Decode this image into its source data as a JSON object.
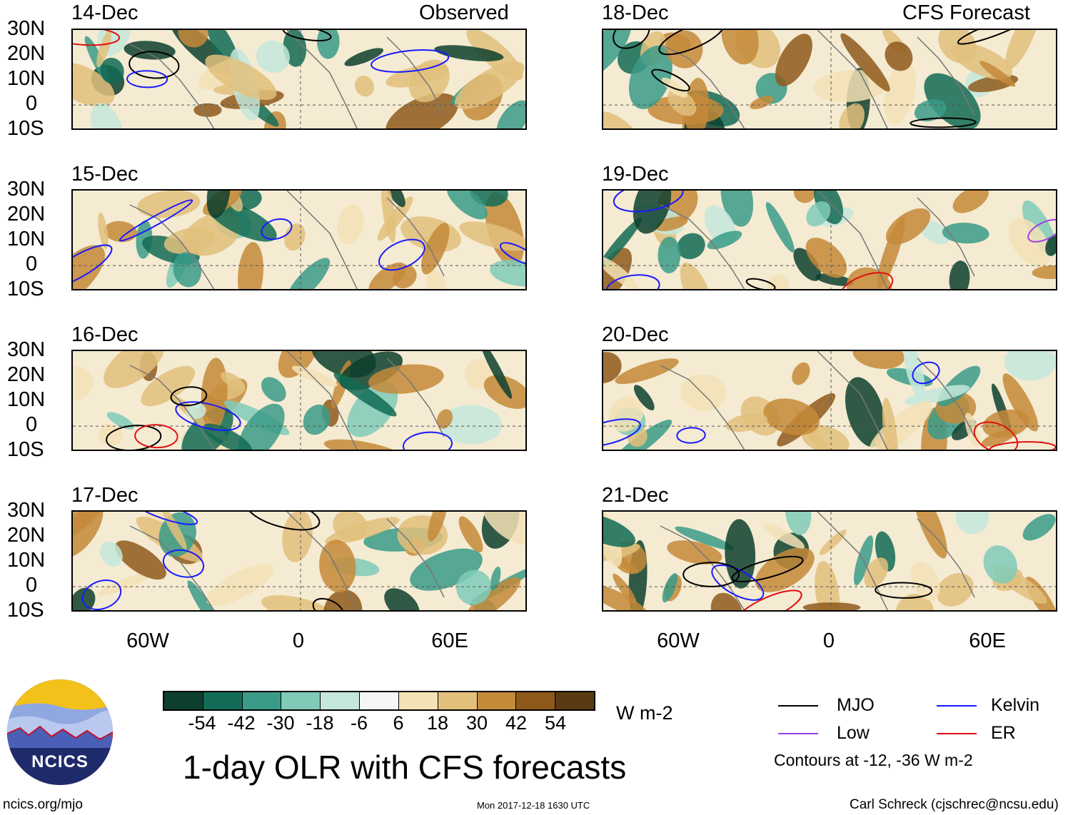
{
  "observed_label": "Observed",
  "forecast_label": "CFS Forecast",
  "panels_left": [
    {
      "date": "14-Dec"
    },
    {
      "date": "15-Dec"
    },
    {
      "date": "16-Dec"
    },
    {
      "date": "17-Dec"
    }
  ],
  "panels_right": [
    {
      "date": "18-Dec"
    },
    {
      "date": "19-Dec"
    },
    {
      "date": "20-Dec"
    },
    {
      "date": "21-Dec"
    }
  ],
  "lat_labels": [
    "30N",
    "20N",
    "10N",
    "0",
    "10S"
  ],
  "lon_labels": [
    "60W",
    "0",
    "60E"
  ],
  "colorbar": {
    "colors": [
      "#0d3f2e",
      "#126b56",
      "#3a9b88",
      "#7fcbb8",
      "#c4e7dc",
      "#f6f6f4",
      "#f3e2b6",
      "#e2c07c",
      "#c48a3a",
      "#8e5a1c",
      "#5a3a12"
    ],
    "ticks": [
      "-54",
      "-42",
      "-30",
      "-18",
      "-6",
      "6",
      "18",
      "30",
      "42",
      "54"
    ],
    "units": "W m-2"
  },
  "legend": {
    "items": [
      {
        "label": "MJO",
        "color": "#000000"
      },
      {
        "label": "Kelvin",
        "color": "#1a1aff"
      },
      {
        "label": "Low",
        "color": "#a040e0"
      },
      {
        "label": "ER",
        "color": "#e01010"
      }
    ],
    "contour_note": "Contours at -12, -36 W m-2"
  },
  "title": "1-day OLR with CFS forecasts",
  "logo_text": "NCICS",
  "footer": {
    "url": "ncics.org/mjo",
    "timestamp": "Mon 2017-12-18 1630 UTC",
    "credit": "Carl Schreck (cjschrec@ncsu.edu)"
  }
}
